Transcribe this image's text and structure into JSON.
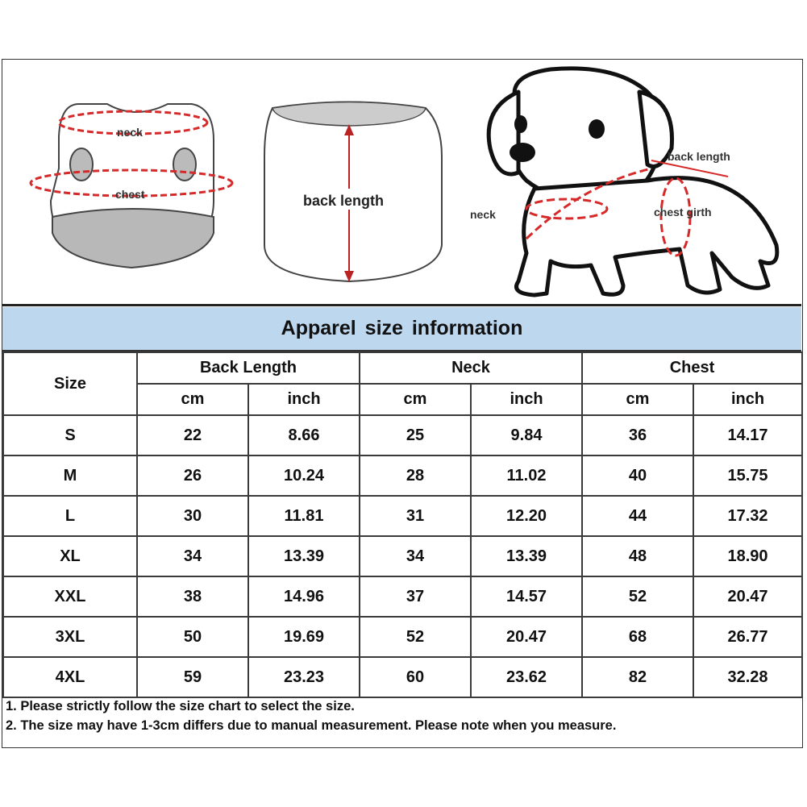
{
  "illustration": {
    "front_labels": {
      "neck": "neck",
      "chest": "chest"
    },
    "back_label": "back length",
    "dog_labels": {
      "back_length": "back length",
      "neck": "neck",
      "chest_girth": "chest girth"
    },
    "arrow_color": "#d62a2a"
  },
  "title": "Apparel size information",
  "table": {
    "size_header": "Size",
    "groups": [
      "Back Length",
      "Neck",
      "Chest"
    ],
    "units": [
      "cm",
      "inch",
      "cm",
      "inch",
      "cm",
      "inch"
    ],
    "rows": [
      [
        "S",
        "22",
        "8.66",
        "25",
        "9.84",
        "36",
        "14.17"
      ],
      [
        "M",
        "26",
        "10.24",
        "28",
        "11.02",
        "40",
        "15.75"
      ],
      [
        "L",
        "30",
        "11.81",
        "31",
        "12.20",
        "44",
        "17.32"
      ],
      [
        "XL",
        "34",
        "13.39",
        "34",
        "13.39",
        "48",
        "18.90"
      ],
      [
        "XXL",
        "38",
        "14.96",
        "37",
        "14.57",
        "52",
        "20.47"
      ],
      [
        "3XL",
        "50",
        "19.69",
        "52",
        "20.47",
        "68",
        "26.77"
      ],
      [
        "4XL",
        "59",
        "23.23",
        "60",
        "23.62",
        "82",
        "32.28"
      ]
    ]
  },
  "notes": [
    "1. Please strictly follow the size chart  to select the size.",
    "2. The size may have 1-3cm differs due to manual measurement. Please note when you measure."
  ],
  "colors": {
    "header_band": "#bdd7ee",
    "border": "#333333"
  }
}
